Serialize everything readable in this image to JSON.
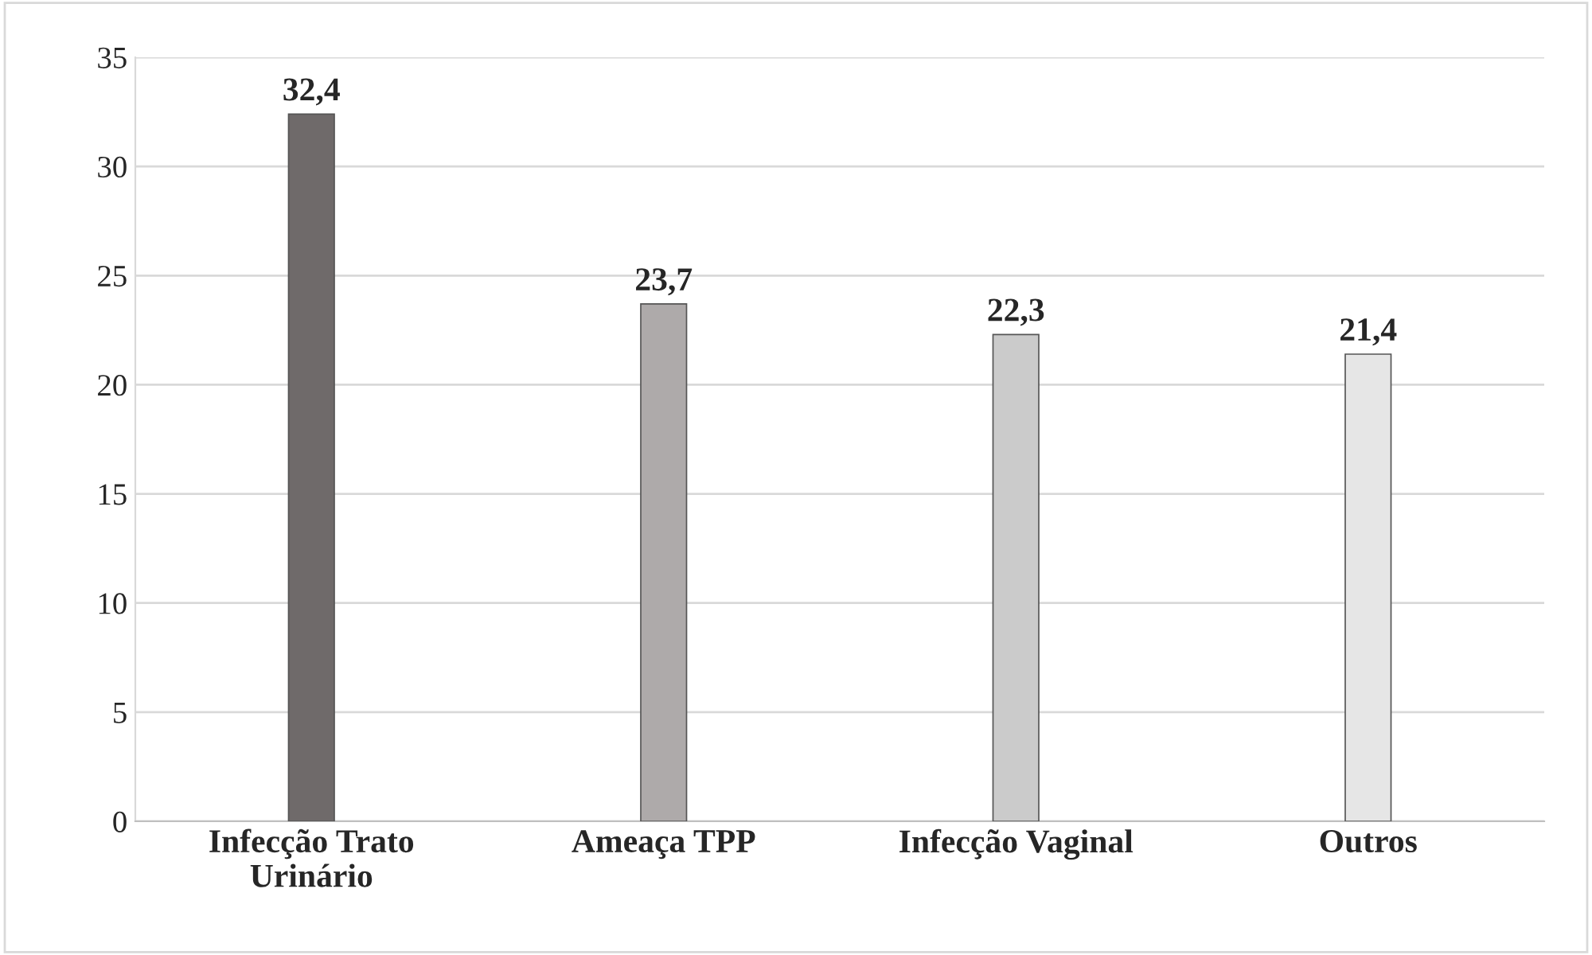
{
  "chart_data": {
    "type": "bar",
    "categories": [
      "Infecção Trato\nUrinário",
      "Ameaça TPP",
      "Infecção Vaginal",
      "Outros"
    ],
    "values": [
      32.4,
      23.7,
      22.3,
      21.4
    ],
    "colors": [
      "#6f6a6a",
      "#aeaaaa",
      "#cbcbcb",
      "#e6e6e6"
    ],
    "value_labels": [
      "32,4",
      "23,7",
      "22,3",
      "21,4"
    ],
    "ylim": [
      0,
      35
    ],
    "yticks": [
      0,
      5,
      10,
      15,
      20,
      25,
      30,
      35
    ],
    "grid": "y"
  }
}
